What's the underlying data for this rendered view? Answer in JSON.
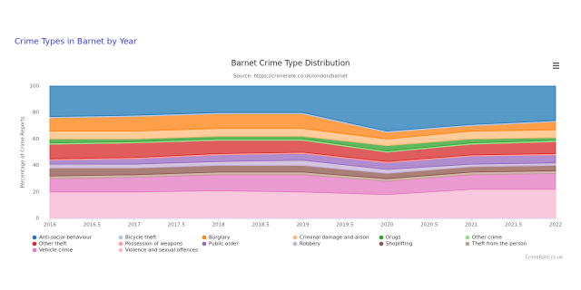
{
  "heading": "Crime Types in Barnet by Year",
  "chart_data": {
    "type": "area",
    "stacked": true,
    "title": "Barnet Crime Type Distribution",
    "subtitle": "Source: https://crimerate.co.uk/london/barnet",
    "ylabel": "Percentage of Crime Reports",
    "credit": "CrimeRate.co.uk",
    "x": [
      2016,
      2017,
      2018,
      2019,
      2020,
      2021,
      2022
    ],
    "xlim": [
      2016,
      2022
    ],
    "xticks": [
      2016,
      2016.5,
      2017,
      2017.5,
      2018,
      2018.5,
      2019,
      2019.5,
      2020,
      2020.5,
      2021,
      2021.5,
      2022
    ],
    "ylim": [
      0,
      100
    ],
    "yticks": [
      0,
      20,
      40,
      60,
      80,
      100
    ],
    "grid": true,
    "series": [
      {
        "name": "Anti-social behaviour",
        "color": "#1f77b4",
        "values": [
          23,
          22,
          20,
          20,
          34,
          29,
          26
        ]
      },
      {
        "name": "Bicycle theft",
        "color": "#aec7e8",
        "values": [
          1,
          1,
          1,
          1,
          1,
          1,
          1
        ]
      },
      {
        "name": "Burglary",
        "color": "#ff7f0e",
        "values": [
          10,
          11,
          11,
          11,
          5,
          4,
          6
        ]
      },
      {
        "name": "Criminal damage and arson",
        "color": "#ffbb78",
        "values": [
          6,
          6,
          6,
          6,
          5,
          6,
          6
        ]
      },
      {
        "name": "Drugs",
        "color": "#2ca02c",
        "values": [
          3,
          2,
          2,
          2,
          4,
          3,
          2
        ]
      },
      {
        "name": "Other crime",
        "color": "#98df8a",
        "values": [
          1,
          1,
          1,
          1,
          1,
          1,
          1
        ]
      },
      {
        "name": "Other theft",
        "color": "#d62728",
        "values": [
          11,
          11,
          10,
          9,
          7,
          8,
          9
        ]
      },
      {
        "name": "Possession of weapons",
        "color": "#ff9896",
        "values": [
          1,
          1,
          1,
          1,
          1,
          1,
          1
        ]
      },
      {
        "name": "Public order",
        "color": "#9467bd",
        "values": [
          3,
          4,
          5,
          5,
          5,
          6,
          6
        ]
      },
      {
        "name": "Robbery",
        "color": "#c5b0d5",
        "values": [
          3,
          3,
          3,
          4,
          3,
          2,
          2
        ]
      },
      {
        "name": "Shoplifting",
        "color": "#8c564b",
        "values": [
          6,
          5,
          5,
          5,
          4,
          4,
          4
        ]
      },
      {
        "name": "Theft from the person",
        "color": "#c49c94",
        "values": [
          2,
          2,
          2,
          2,
          2,
          2,
          2
        ]
      },
      {
        "name": "Vehicle crime",
        "color": "#e377c2",
        "values": [
          10,
          11,
          12,
          13,
          10,
          11,
          12
        ]
      },
      {
        "name": "Violence and sexual offences",
        "color": "#f7b6d2",
        "values": [
          20,
          20,
          21,
          20,
          18,
          22,
          22
        ]
      }
    ]
  }
}
